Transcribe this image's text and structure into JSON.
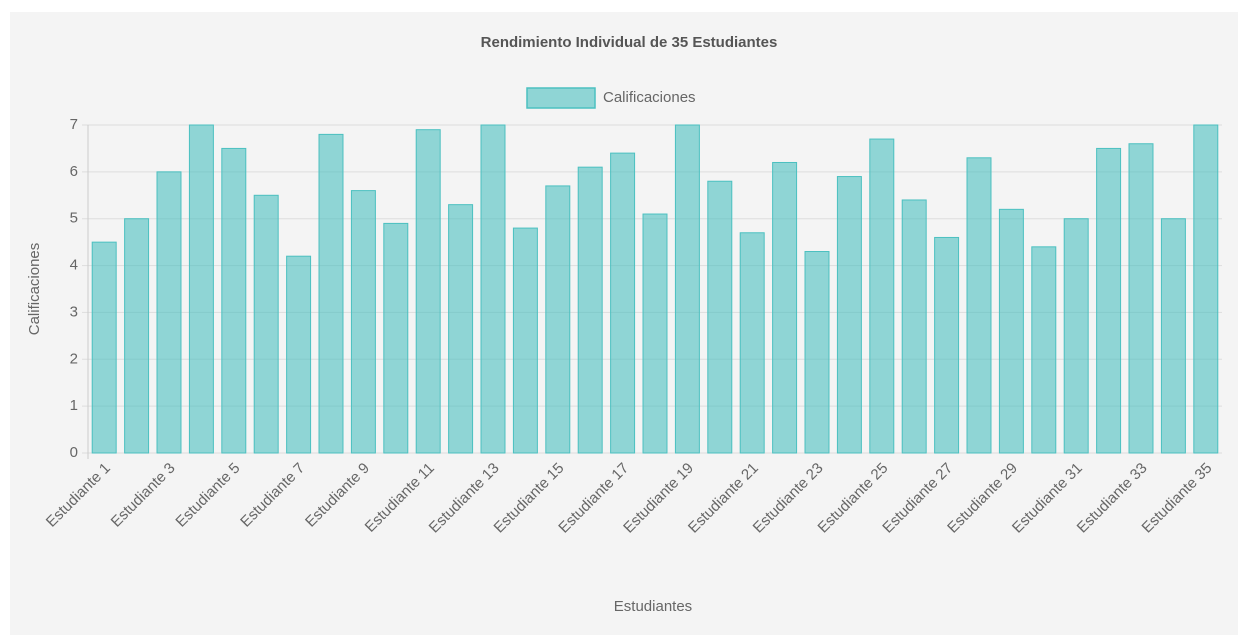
{
  "chart_data": {
    "type": "bar",
    "title": "Rendimiento Individual de 35 Estudiantes",
    "x_label": "Estudiantes",
    "y_label": "Calificaciones",
    "categories": [
      "Estudiante 1",
      null,
      "Estudiante 3",
      null,
      "Estudiante 5",
      null,
      "Estudiante 7",
      null,
      "Estudiante 9",
      null,
      "Estudiante 11",
      null,
      "Estudiante 13",
      null,
      "Estudiante 15",
      null,
      "Estudiante 17",
      null,
      "Estudiante 19",
      null,
      "Estudiante 21",
      null,
      "Estudiante 23",
      null,
      "Estudiante 25",
      null,
      "Estudiante 27",
      null,
      "Estudiante 29",
      null,
      "Estudiante 31",
      null,
      "Estudiante 33",
      null,
      "Estudiante 35"
    ],
    "series": [
      {
        "name": "Calificaciones",
        "color": "rgba(75, 192, 192, 0.6)",
        "values": [
          4.5,
          5.0,
          6.0,
          7.0,
          6.5,
          5.5,
          4.2,
          6.8,
          5.6,
          4.9,
          6.9,
          5.3,
          7.0,
          4.8,
          5.7,
          6.1,
          6.4,
          5.1,
          7.0,
          5.8,
          4.7,
          6.2,
          4.3,
          5.9,
          6.7,
          5.4,
          4.6,
          6.3,
          5.2,
          4.4,
          5.0,
          6.5,
          6.6,
          5.0,
          7.0
        ]
      }
    ],
    "ylim": [
      0,
      7
    ],
    "yticks": [
      0,
      1,
      2,
      3,
      4,
      5,
      6,
      7
    ],
    "grid": true,
    "legend": "top"
  }
}
